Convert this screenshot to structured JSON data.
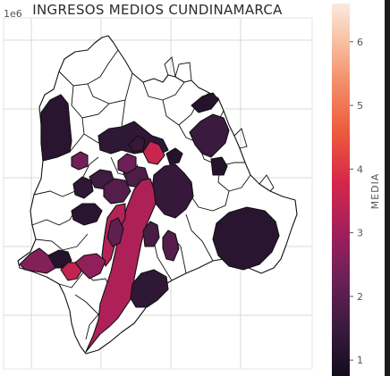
{
  "title": "INGRESOS MEDIOS CUNDINAMARCA",
  "axis_offset_label": "1e6",
  "colorbar": {
    "label": "MEDIA",
    "ticks": [
      "1",
      "2",
      "3",
      "4",
      "5",
      "6"
    ],
    "range": [
      0.75,
      6.6
    ],
    "gradient": [
      {
        "v": 0.75,
        "color": "#120d1c"
      },
      {
        "v": 1.5,
        "color": "#3a1a3f"
      },
      {
        "v": 2.3,
        "color": "#6d2057"
      },
      {
        "v": 3.0,
        "color": "#a01f5c"
      },
      {
        "v": 3.8,
        "color": "#d7274a"
      },
      {
        "v": 4.6,
        "color": "#ec5c3c"
      },
      {
        "v": 5.4,
        "color": "#f4916c"
      },
      {
        "v": 6.1,
        "color": "#f8c7aa"
      },
      {
        "v": 6.6,
        "color": "#fbe9df"
      }
    ]
  },
  "chart_data": {
    "type": "heatmap",
    "title": "INGRESOS MEDIOS CUNDINAMARCA",
    "offset_text": "1e6",
    "colorbar_label": "MEDIA",
    "colorbar_ticks": [
      1,
      2,
      3,
      4,
      5,
      6
    ],
    "colorbar_range": [
      0.75,
      6.6
    ],
    "grid": true,
    "no_data_color": "#ffffff",
    "regions": [
      {
        "id": "r01",
        "value": 1.2
      },
      {
        "id": "r02",
        "value": 1.3
      },
      {
        "id": "r03",
        "value": 1.1
      },
      {
        "id": "r04",
        "value": 1.5
      },
      {
        "id": "r05",
        "value": 1.1
      },
      {
        "id": "r06",
        "value": 1.2
      },
      {
        "id": "r07",
        "value": 3.6
      },
      {
        "id": "r08",
        "value": 2.4
      },
      {
        "id": "r09",
        "value": 1.4
      },
      {
        "id": "r10",
        "value": 1.3
      },
      {
        "id": "r11",
        "value": 1.6
      },
      {
        "id": "r12",
        "value": 1.9
      },
      {
        "id": "r13",
        "value": 1.8
      },
      {
        "id": "r14",
        "value": 2.3
      },
      {
        "id": "r15",
        "value": 1.2
      },
      {
        "id": "r16",
        "value": 1.4
      },
      {
        "id": "r17",
        "value": 3.2
      },
      {
        "id": "r18",
        "value": 1.3
      },
      {
        "id": "r19",
        "value": 1.1
      },
      {
        "id": "r20",
        "value": 3.3
      },
      {
        "id": "r21",
        "value": 2.6
      },
      {
        "id": "r22",
        "value": 3.5
      },
      {
        "id": "r23",
        "value": 2.8
      },
      {
        "id": "r24",
        "value": 1.9
      },
      {
        "id": "r25",
        "value": 2.1
      },
      {
        "id": "r26",
        "value": 1.7
      },
      {
        "id": "r27",
        "value": 1.1
      }
    ]
  }
}
